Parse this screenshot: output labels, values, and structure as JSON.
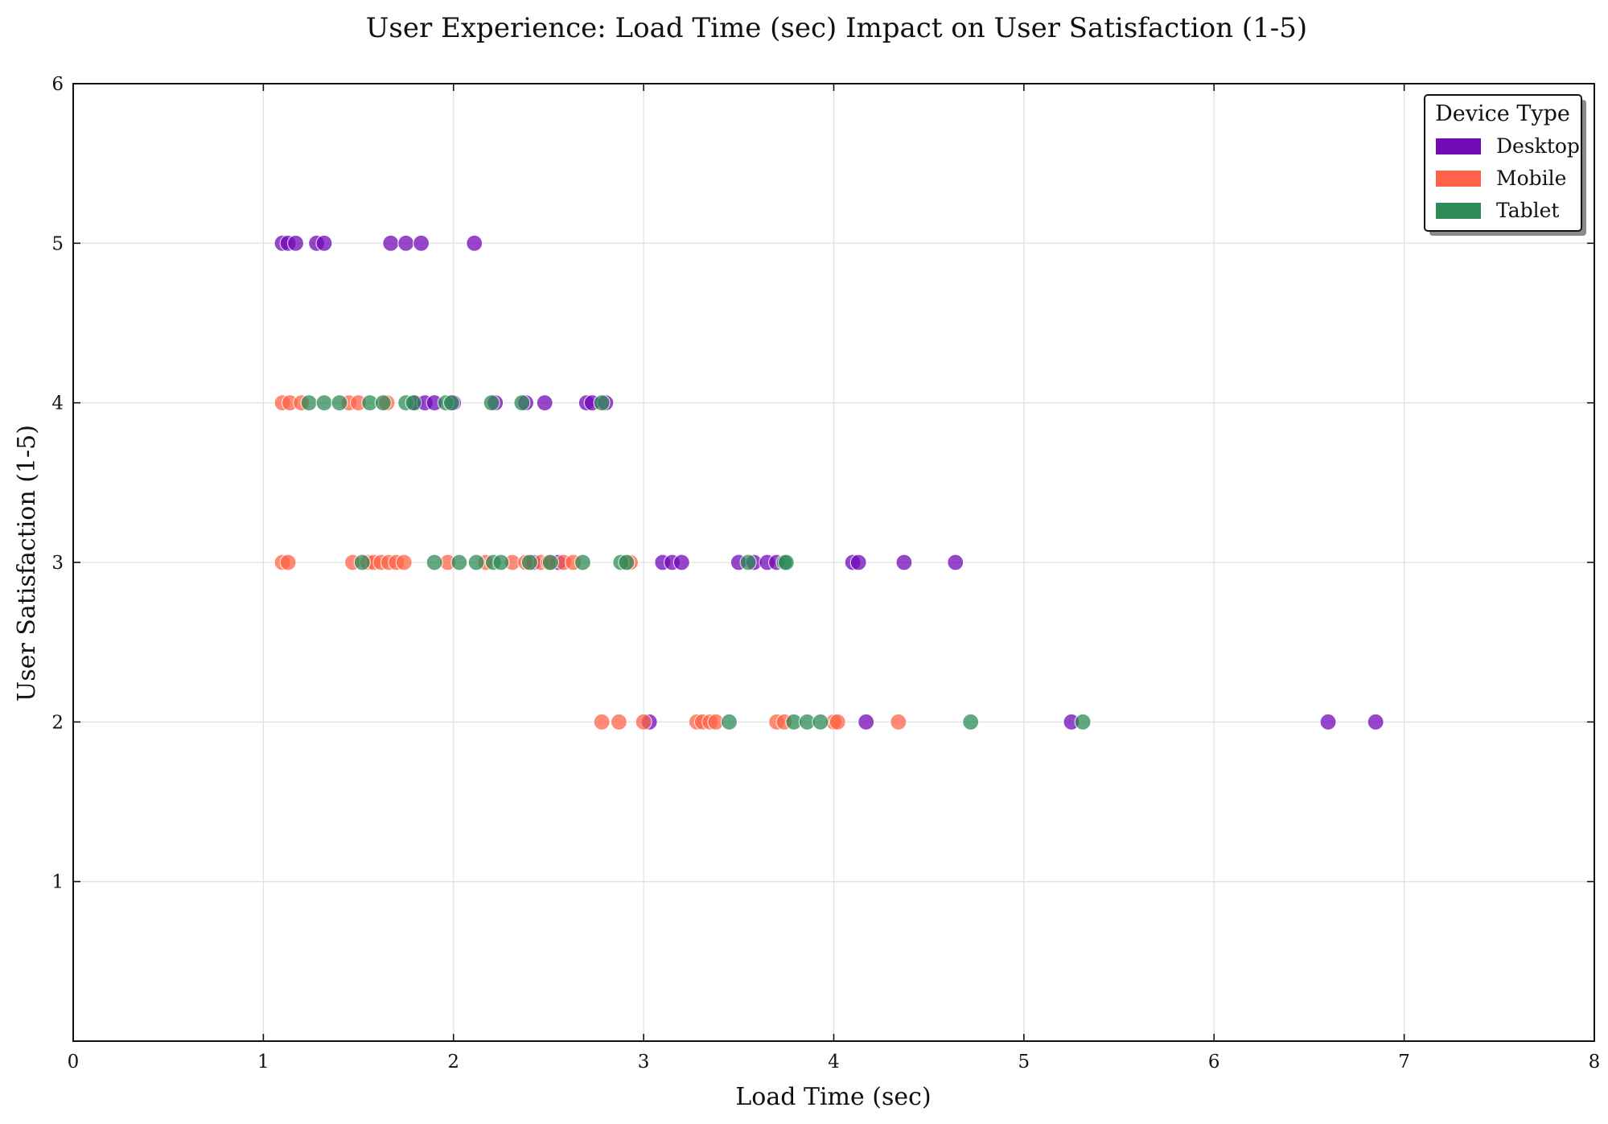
{
  "chart_data": {
    "type": "scatter",
    "title": "User Experience: Load Time (sec) Impact on User Satisfaction (1-5)",
    "xlabel": "Load Time (sec)",
    "ylabel": "User Satisfaction (1-5)",
    "xlim": [
      0,
      8
    ],
    "ylim": [
      0,
      6
    ],
    "xticks": [
      0,
      1,
      2,
      3,
      4,
      5,
      6,
      7,
      8
    ],
    "yticks": [
      1,
      2,
      3,
      4,
      5,
      6
    ],
    "xtick_labels": [
      "0",
      "1",
      "2",
      "3",
      "4",
      "5",
      "6",
      "7",
      "8"
    ],
    "ytick_labels": [
      "1",
      "2",
      "3",
      "4",
      "5",
      "6"
    ],
    "grid": true,
    "legend": {
      "title": "Device Type",
      "position": "top-right"
    },
    "series": [
      {
        "name": "Desktop",
        "color": "#7209b7",
        "points": [
          [
            1.1,
            5
          ],
          [
            1.13,
            5
          ],
          [
            1.17,
            5
          ],
          [
            1.28,
            5
          ],
          [
            1.32,
            5
          ],
          [
            1.67,
            5
          ],
          [
            1.75,
            5
          ],
          [
            1.83,
            5
          ],
          [
            2.11,
            5
          ],
          [
            1.8,
            4
          ],
          [
            1.85,
            4
          ],
          [
            1.9,
            4
          ],
          [
            2.0,
            4
          ],
          [
            2.22,
            4
          ],
          [
            2.38,
            4
          ],
          [
            2.48,
            4
          ],
          [
            2.7,
            4
          ],
          [
            2.73,
            4
          ],
          [
            2.8,
            4
          ],
          [
            2.42,
            3
          ],
          [
            2.55,
            3
          ],
          [
            3.1,
            3
          ],
          [
            3.15,
            3
          ],
          [
            3.2,
            3
          ],
          [
            3.5,
            3
          ],
          [
            3.58,
            3
          ],
          [
            3.65,
            3
          ],
          [
            3.7,
            3
          ],
          [
            4.1,
            3
          ],
          [
            4.13,
            3
          ],
          [
            4.37,
            3
          ],
          [
            4.64,
            3
          ],
          [
            3.03,
            2
          ],
          [
            4.17,
            2
          ],
          [
            5.25,
            2
          ],
          [
            6.6,
            2
          ],
          [
            6.85,
            2
          ]
        ]
      },
      {
        "name": "Mobile",
        "color": "#ff6347",
        "points": [
          [
            1.1,
            4
          ],
          [
            1.14,
            4
          ],
          [
            1.2,
            4
          ],
          [
            1.45,
            4
          ],
          [
            1.5,
            4
          ],
          [
            1.65,
            4
          ],
          [
            1.1,
            3
          ],
          [
            1.13,
            3
          ],
          [
            1.47,
            3
          ],
          [
            1.55,
            3
          ],
          [
            1.58,
            3
          ],
          [
            1.62,
            3
          ],
          [
            1.66,
            3
          ],
          [
            1.7,
            3
          ],
          [
            1.74,
            3
          ],
          [
            1.97,
            3
          ],
          [
            2.17,
            3
          ],
          [
            2.31,
            3
          ],
          [
            2.38,
            3
          ],
          [
            2.46,
            3
          ],
          [
            2.5,
            3
          ],
          [
            2.58,
            3
          ],
          [
            2.63,
            3
          ],
          [
            2.93,
            3
          ],
          [
            2.78,
            2
          ],
          [
            2.87,
            2
          ],
          [
            3.0,
            2
          ],
          [
            3.28,
            2
          ],
          [
            3.31,
            2
          ],
          [
            3.35,
            2
          ],
          [
            3.38,
            2
          ],
          [
            3.7,
            2
          ],
          [
            3.74,
            2
          ],
          [
            4.0,
            2
          ],
          [
            4.02,
            2
          ],
          [
            4.34,
            2
          ]
        ]
      },
      {
        "name": "Tablet",
        "color": "#2e8b57",
        "points": [
          [
            1.24,
            4
          ],
          [
            1.32,
            4
          ],
          [
            1.4,
            4
          ],
          [
            1.56,
            4
          ],
          [
            1.63,
            4
          ],
          [
            1.75,
            4
          ],
          [
            1.79,
            4
          ],
          [
            1.96,
            4
          ],
          [
            1.99,
            4
          ],
          [
            2.2,
            4
          ],
          [
            2.36,
            4
          ],
          [
            2.78,
            4
          ],
          [
            1.52,
            3
          ],
          [
            1.9,
            3
          ],
          [
            2.03,
            3
          ],
          [
            2.12,
            3
          ],
          [
            2.21,
            3
          ],
          [
            2.25,
            3
          ],
          [
            2.4,
            3
          ],
          [
            2.51,
            3
          ],
          [
            2.68,
            3
          ],
          [
            2.88,
            3
          ],
          [
            2.91,
            3
          ],
          [
            3.55,
            3
          ],
          [
            3.74,
            3
          ],
          [
            3.75,
            3
          ],
          [
            3.45,
            2
          ],
          [
            3.79,
            2
          ],
          [
            3.86,
            2
          ],
          [
            3.93,
            2
          ],
          [
            4.72,
            2
          ],
          [
            5.31,
            2
          ]
        ]
      }
    ]
  }
}
